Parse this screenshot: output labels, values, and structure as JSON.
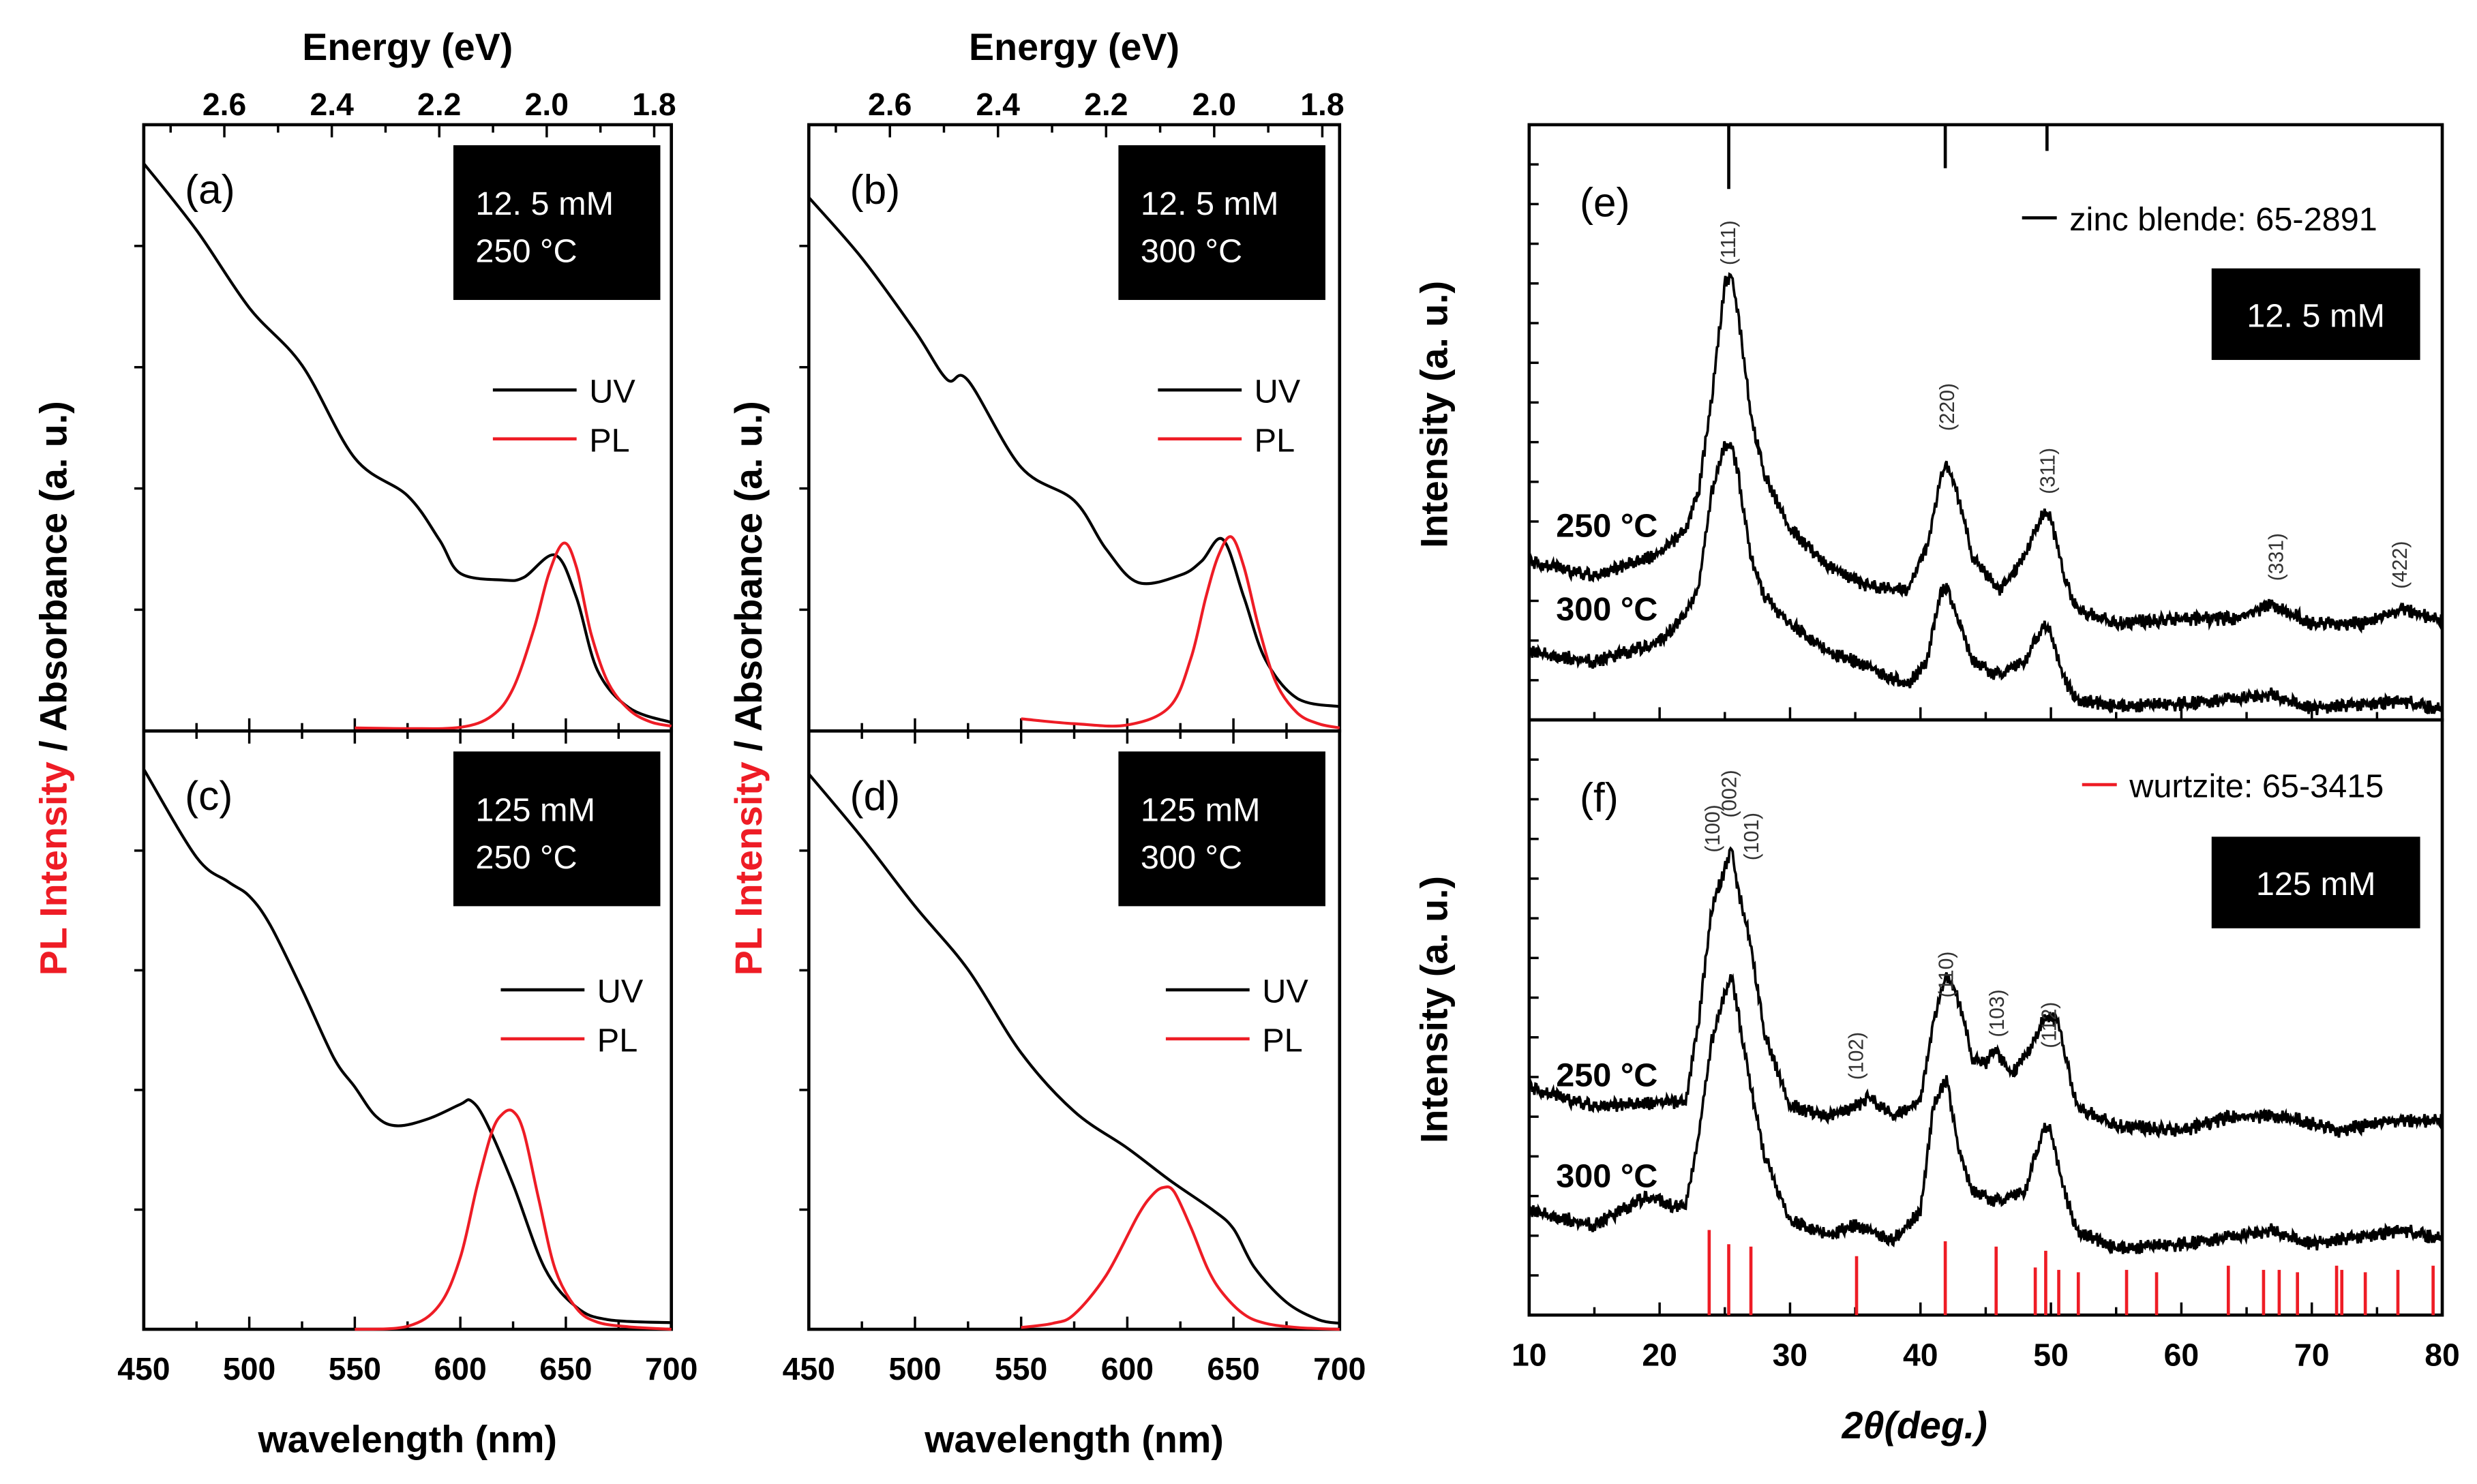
{
  "colors": {
    "uv": "#000000",
    "pl": "#ee1c25",
    "box": "#000000",
    "wurtzite": "#ee1c25"
  },
  "spectra_ylabel": {
    "red_part": "PL Intensity",
    "black_part": " / Absorbance (a. u.)"
  },
  "chart_data": [
    {
      "panel": "a",
      "type": "line",
      "label": "(a)",
      "box_lines": [
        "12. 5 mM",
        "250 °C"
      ],
      "xlabel": "",
      "xlim": [
        450,
        700
      ],
      "ylim": [
        0,
        1
      ],
      "top_axis": {
        "label": "Energy (eV)",
        "ticks": [
          "2.6",
          "2.4",
          "2.2",
          "2.0",
          "1.8"
        ],
        "range": [
          2.75,
          1.768
        ]
      },
      "series": [
        {
          "name": "UV",
          "x": [
            450,
            475,
            500,
            525,
            550,
            575,
            590,
            600,
            620,
            630,
            645,
            655,
            665,
            680,
            700
          ],
          "y": [
            0.936,
            0.826,
            0.698,
            0.603,
            0.45,
            0.388,
            0.316,
            0.26,
            0.249,
            0.253,
            0.29,
            0.22,
            0.1,
            0.038,
            0.014
          ]
        },
        {
          "name": "PL",
          "x": [
            550,
            575,
            600,
            615,
            625,
            635,
            642,
            649,
            655,
            662,
            670,
            680,
            690,
            700
          ],
          "y": [
            0.005,
            0.004,
            0.006,
            0.025,
            0.07,
            0.17,
            0.26,
            0.31,
            0.27,
            0.16,
            0.08,
            0.035,
            0.015,
            0.008
          ]
        }
      ]
    },
    {
      "panel": "b",
      "type": "line",
      "label": "(b)",
      "box_lines": [
        "12. 5 mM",
        "300 °C"
      ],
      "xlabel": "",
      "xlim": [
        450,
        700
      ],
      "ylim": [
        0,
        1
      ],
      "top_axis": {
        "label": "Energy (eV)",
        "ticks": [
          "2.6",
          "2.4",
          "2.2",
          "2.0",
          "1.8"
        ],
        "range": [
          2.75,
          1.768
        ]
      },
      "series": [
        {
          "name": "UV",
          "x": [
            450,
            475,
            500,
            515,
            525,
            550,
            575,
            590,
            605,
            625,
            635,
            645,
            655,
            665,
            680,
            700
          ],
          "y": [
            0.88,
            0.78,
            0.66,
            0.58,
            0.578,
            0.435,
            0.38,
            0.3,
            0.245,
            0.257,
            0.28,
            0.316,
            0.22,
            0.118,
            0.054,
            0.04
          ]
        },
        {
          "name": "PL",
          "x": [
            550,
            575,
            600,
            620,
            630,
            637,
            643,
            649,
            655,
            662,
            670,
            680,
            690,
            700
          ],
          "y": [
            0.02,
            0.012,
            0.01,
            0.04,
            0.12,
            0.22,
            0.29,
            0.32,
            0.27,
            0.17,
            0.08,
            0.03,
            0.012,
            0.005
          ]
        }
      ]
    },
    {
      "panel": "c",
      "type": "line",
      "label": "(c)",
      "box_lines": [
        "125 mM",
        "250 °C"
      ],
      "xlabel": "wavelength (nm)",
      "xlim": [
        450,
        700
      ],
      "ylim": [
        0,
        1
      ],
      "xticks": [
        "450",
        "500",
        "550",
        "600",
        "650",
        "700"
      ],
      "series": [
        {
          "name": "UV",
          "x": [
            450,
            475,
            490,
            500,
            510,
            525,
            540,
            550,
            560,
            570,
            585,
            600,
            605,
            612,
            625,
            640,
            655,
            670,
            700
          ],
          "y": [
            0.936,
            0.789,
            0.748,
            0.724,
            0.675,
            0.568,
            0.454,
            0.405,
            0.356,
            0.34,
            0.352,
            0.376,
            0.382,
            0.348,
            0.242,
            0.102,
            0.037,
            0.016,
            0.011
          ]
        },
        {
          "name": "PL",
          "x": [
            550,
            575,
            590,
            600,
            608,
            615,
            620,
            625,
            630,
            637,
            645,
            655,
            665,
            680,
            700
          ],
          "y": [
            0,
            0.005,
            0.04,
            0.12,
            0.24,
            0.33,
            0.36,
            0.364,
            0.33,
            0.22,
            0.1,
            0.035,
            0.012,
            0.004,
            0
          ]
        }
      ]
    },
    {
      "panel": "d",
      "type": "line",
      "label": "(d)",
      "box_lines": [
        "125 mM",
        "300 °C"
      ],
      "xlabel": "wavelength (nm)",
      "xlim": [
        450,
        700
      ],
      "ylim": [
        0,
        1
      ],
      "xticks": [
        "450",
        "500",
        "550",
        "600",
        "650",
        "700"
      ],
      "series": [
        {
          "name": "UV",
          "x": [
            450,
            475,
            500,
            525,
            550,
            575,
            600,
            620,
            640,
            650,
            660,
            675,
            690,
            700
          ],
          "y": [
            0.928,
            0.822,
            0.707,
            0.601,
            0.462,
            0.364,
            0.303,
            0.249,
            0.2,
            0.168,
            0.103,
            0.045,
            0.016,
            0.01
          ]
        },
        {
          "name": "PL",
          "x": [
            550,
            565,
            575,
            590,
            605,
            612,
            617,
            622,
            630,
            638,
            645,
            655,
            665,
            680,
            700
          ],
          "y": [
            0.003,
            0.01,
            0.025,
            0.09,
            0.19,
            0.225,
            0.237,
            0.23,
            0.17,
            0.1,
            0.06,
            0.025,
            0.01,
            0.003,
            0
          ]
        }
      ]
    },
    {
      "panel": "e",
      "type": "line",
      "label": "(e)",
      "box_lines": [
        "12. 5 mM"
      ],
      "ylabel": "Intensity (a. u.)",
      "xlabel": "",
      "xlim": [
        10,
        80
      ],
      "ylim": [
        0,
        1
      ],
      "reference": {
        "name": "zinc blende: 65-2891",
        "color": "#000000",
        "positions": [
          25.3,
          41.9,
          49.7
        ],
        "heights": [
          0.108,
          0.073,
          0.044
        ]
      },
      "peak_labels": [
        {
          "text": "(111)",
          "x": 25.3
        },
        {
          "text": "(220)",
          "x": 42.1
        },
        {
          "text": "(311)",
          "x": 49.8
        },
        {
          "text": "(331)",
          "x": 67.3
        },
        {
          "text": "(422)",
          "x": 76.8
        }
      ],
      "series": [
        {
          "name": "250 °C",
          "x": [
            10,
            12,
            15,
            20,
            22,
            23,
            24,
            25,
            25.5,
            26,
            27,
            28,
            30,
            33,
            36,
            39,
            40.5,
            41.5,
            42,
            43,
            44,
            46,
            48,
            49.5,
            50,
            51,
            52,
            55,
            60,
            64,
            67,
            70,
            74,
            77,
            80
          ],
          "y": [
            0.265,
            0.257,
            0.241,
            0.28,
            0.32,
            0.384,
            0.543,
            0.733,
            0.749,
            0.686,
            0.511,
            0.416,
            0.32,
            0.257,
            0.225,
            0.217,
            0.289,
            0.4,
            0.432,
            0.368,
            0.273,
            0.217,
            0.273,
            0.352,
            0.337,
            0.241,
            0.186,
            0.162,
            0.17,
            0.17,
            0.194,
            0.162,
            0.162,
            0.186,
            0.165
          ]
        },
        {
          "name": "300 °C",
          "x": [
            10,
            15,
            20,
            22,
            23,
            24,
            25,
            25.5,
            26,
            27,
            28,
            30,
            33,
            36,
            39,
            40.5,
            41.5,
            42,
            43,
            44,
            46,
            48,
            49.5,
            50,
            51,
            52,
            55,
            60,
            67,
            70,
            77,
            80
          ],
          "y": [
            0.114,
            0.098,
            0.13,
            0.178,
            0.225,
            0.384,
            0.463,
            0.463,
            0.416,
            0.273,
            0.21,
            0.162,
            0.114,
            0.09,
            0.059,
            0.098,
            0.21,
            0.225,
            0.162,
            0.098,
            0.075,
            0.098,
            0.162,
            0.146,
            0.067,
            0.035,
            0.022,
            0.027,
            0.043,
            0.019,
            0.032,
            0.016
          ]
        }
      ]
    },
    {
      "panel": "f",
      "type": "line",
      "label": "(f)",
      "box_lines": [
        "125 mM"
      ],
      "ylabel": "Intensity (a. u.)",
      "xlabel": "2θ(deg.)",
      "xlim": [
        10,
        80
      ],
      "ylim": [
        0,
        1
      ],
      "xticks": [
        "10",
        "20",
        "30",
        "40",
        "50",
        "60",
        "70",
        "80"
      ],
      "reference": {
        "name": "wurtzite: 65-3415",
        "color": "#ee1c25",
        "positions": [
          23.8,
          25.3,
          27.0,
          35.1,
          41.9,
          45.8,
          48.8,
          49.6,
          50.6,
          52.1,
          55.8,
          58.1,
          63.6,
          66.3,
          67.5,
          68.9,
          71.9,
          72.3,
          74.1,
          76.6,
          79.3
        ],
        "heights": [
          0.143,
          0.119,
          0.115,
          0.099,
          0.124,
          0.115,
          0.08,
          0.108,
          0.076,
          0.072,
          0.076,
          0.072,
          0.083,
          0.076,
          0.076,
          0.072,
          0.083,
          0.076,
          0.072,
          0.076,
          0.083
        ]
      },
      "peak_labels": [
        {
          "text": "(100)",
          "x": 24.1
        },
        {
          "text": "(002)",
          "x": 25.4
        },
        {
          "text": "(101)",
          "x": 27.1
        },
        {
          "text": "(102)",
          "x": 35.1
        },
        {
          "text": "(110)",
          "x": 42.0
        },
        {
          "text": "(103)",
          "x": 45.9
        },
        {
          "text": "(112)",
          "x": 49.9
        }
      ],
      "series": [
        {
          "name": "250 °C",
          "x": [
            10,
            15,
            20,
            22,
            23,
            24,
            25,
            25.5,
            26,
            27,
            28,
            30,
            33,
            35,
            36,
            38,
            40,
            41,
            42,
            43,
            44,
            45,
            45.7,
            47,
            48.5,
            49.5,
            50.5,
            52,
            55,
            60,
            64,
            68,
            72,
            76,
            80
          ],
          "y": [
            0.382,
            0.35,
            0.358,
            0.358,
            0.494,
            0.685,
            0.748,
            0.788,
            0.717,
            0.621,
            0.478,
            0.35,
            0.334,
            0.35,
            0.366,
            0.334,
            0.358,
            0.494,
            0.573,
            0.525,
            0.43,
            0.422,
            0.446,
            0.406,
            0.446,
            0.502,
            0.494,
            0.35,
            0.318,
            0.31,
            0.334,
            0.334,
            0.31,
            0.326,
            0.326
          ]
        },
        {
          "name": "300 °C",
          "x": [
            10,
            15,
            19,
            21,
            22,
            23,
            24,
            25,
            25.5,
            26,
            27,
            28,
            30,
            33,
            35,
            38,
            40,
            41,
            42,
            43,
            44,
            46,
            48,
            49.5,
            50,
            51,
            52,
            55,
            60,
            67,
            70,
            77,
            80
          ],
          "y": [
            0.175,
            0.151,
            0.199,
            0.183,
            0.183,
            0.303,
            0.462,
            0.541,
            0.573,
            0.51,
            0.382,
            0.271,
            0.159,
            0.135,
            0.151,
            0.127,
            0.175,
            0.35,
            0.398,
            0.271,
            0.207,
            0.191,
            0.207,
            0.318,
            0.31,
            0.207,
            0.143,
            0.111,
            0.119,
            0.143,
            0.119,
            0.143,
            0.127
          ]
        }
      ]
    }
  ]
}
